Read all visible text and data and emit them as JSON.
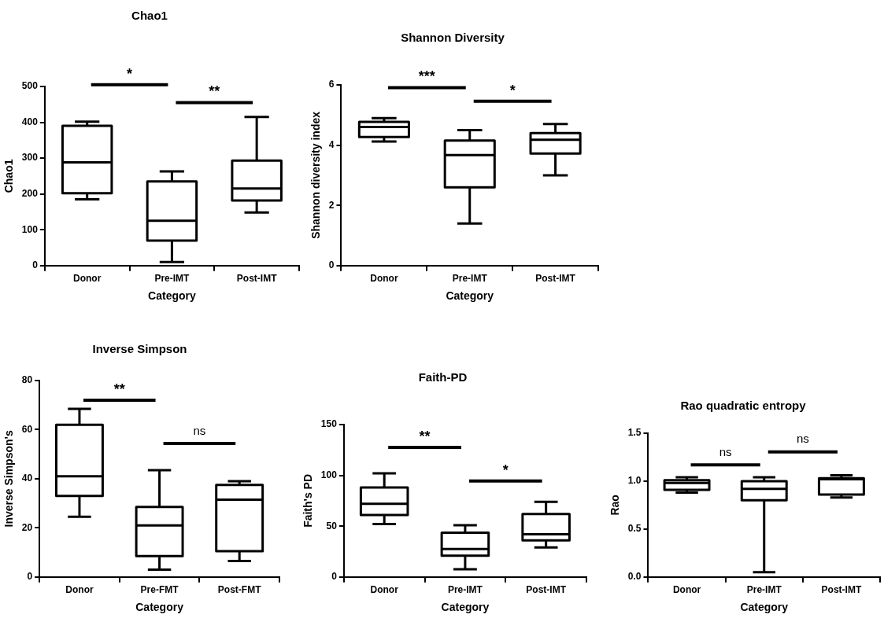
{
  "chart_data": [
    {
      "type": "box",
      "title": "Chao1",
      "xlabel": "Category",
      "ylabel": "Chao1",
      "categories": [
        "Donor",
        "Pre-IMT",
        "Post-IMT"
      ],
      "ylim": [
        0,
        500
      ],
      "yticks": [
        0,
        100,
        200,
        300,
        400,
        500
      ],
      "grid": false,
      "legend": false,
      "boxes": [
        {
          "low": 185,
          "q1": 202,
          "median": 288,
          "q3": 390,
          "high": 402
        },
        {
          "low": 10,
          "q1": 70,
          "median": 125,
          "q3": 235,
          "high": 263
        },
        {
          "low": 148,
          "q1": 182,
          "median": 215,
          "q3": 293,
          "high": 415
        }
      ],
      "annotations": [
        "*",
        "**"
      ]
    },
    {
      "type": "box",
      "title": "Shannon Diversity",
      "xlabel": "Category",
      "ylabel": "Shannon diversity index",
      "categories": [
        "Donor",
        "Pre-IMT",
        "Post-IMT"
      ],
      "ylim": [
        0,
        6
      ],
      "yticks": [
        0,
        2,
        4,
        6
      ],
      "grid": false,
      "legend": false,
      "boxes": [
        {
          "low": 4.12,
          "q1": 4.27,
          "median": 4.6,
          "q3": 4.77,
          "high": 4.9
        },
        {
          "low": 1.4,
          "q1": 2.6,
          "median": 3.67,
          "q3": 4.15,
          "high": 4.5
        },
        {
          "low": 3.0,
          "q1": 3.72,
          "median": 4.18,
          "q3": 4.4,
          "high": 4.7
        }
      ],
      "annotations": [
        "***",
        "*"
      ]
    },
    {
      "type": "box",
      "title": "Inverse Simpson",
      "xlabel": "Category",
      "ylabel": "Inverse Simpson's",
      "categories": [
        "Donor",
        "Pre-FMT",
        "Post-FMT"
      ],
      "ylim": [
        0,
        80
      ],
      "yticks": [
        0,
        20,
        40,
        60,
        80
      ],
      "grid": false,
      "legend": false,
      "boxes": [
        {
          "low": 24.5,
          "q1": 33,
          "median": 41,
          "q3": 62,
          "high": 68.5
        },
        {
          "low": 3,
          "q1": 8.5,
          "median": 21,
          "q3": 28.5,
          "high": 43.5
        },
        {
          "low": 6.5,
          "q1": 10.5,
          "median": 31.5,
          "q3": 37.5,
          "high": 39
        }
      ],
      "annotations": [
        "**",
        "ns"
      ]
    },
    {
      "type": "box",
      "title": "Faith-PD",
      "xlabel": "Category",
      "ylabel": "Faith's PD",
      "categories": [
        "Donor",
        "Pre-IMT",
        "Post-IMT"
      ],
      "ylim": [
        0,
        150
      ],
      "yticks": [
        0,
        50,
        100,
        150
      ],
      "grid": false,
      "legend": false,
      "boxes": [
        {
          "low": 52,
          "q1": 61,
          "median": 72,
          "q3": 88,
          "high": 102
        },
        {
          "low": 7.5,
          "q1": 21,
          "median": 27.5,
          "q3": 43.5,
          "high": 51
        },
        {
          "low": 29,
          "q1": 36,
          "median": 42,
          "q3": 62,
          "high": 74
        }
      ],
      "annotations": [
        "**",
        "*"
      ]
    },
    {
      "type": "box",
      "title": "Rao quadratic entropy",
      "xlabel": "Category",
      "ylabel": "Rao",
      "categories": [
        "Donor",
        "Pre-IMT",
        "Post-IMT"
      ],
      "ylim": [
        0,
        1.5
      ],
      "yticks": [
        {
          "value": 0,
          "label": "0.0"
        },
        {
          "value": 0.5,
          "label": "0.5"
        },
        {
          "value": 1,
          "label": "1.0"
        },
        {
          "value": 1.5,
          "label": "1.5"
        }
      ],
      "grid": false,
      "legend": false,
      "boxes": [
        {
          "low": 0.88,
          "q1": 0.91,
          "median": 0.98,
          "q3": 1.01,
          "high": 1.04
        },
        {
          "low": 0.05,
          "q1": 0.8,
          "median": 0.92,
          "q3": 1.0,
          "high": 1.04
        },
        {
          "low": 0.83,
          "q1": 0.86,
          "median": 1.02,
          "q3": 1.03,
          "high": 1.06
        }
      ],
      "annotations": [
        "ns",
        "ns"
      ]
    }
  ]
}
